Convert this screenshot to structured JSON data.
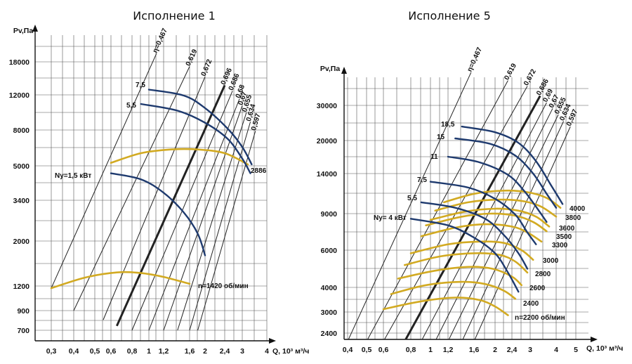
{
  "chart_data": [
    {
      "type": "line",
      "title": "Исполнение 1",
      "ylabel": "Pv,Па",
      "xlabel": "Q, 10³ м³/ч",
      "x_ticks": [
        "0,3",
        "0,4",
        "0,5",
        "0,6",
        "0,8",
        "1",
        "1,2",
        "1,6",
        "2",
        "2,4",
        "3",
        "4"
      ],
      "y_ticks": [
        "700",
        "900",
        "1200",
        "2000",
        "3400",
        "5000",
        "8000",
        "12000",
        "18000"
      ],
      "power_curves": [
        {
          "label": "7,5",
          "points": [
            [
              1.0,
              12800
            ],
            [
              1.5,
              11900
            ],
            [
              2.0,
              10300
            ],
            [
              2.5,
              8100
            ],
            [
              3.0,
              6400
            ],
            [
              3.35,
              5100
            ]
          ]
        },
        {
          "label": "5,5",
          "points": [
            [
              0.9,
              10800
            ],
            [
              1.4,
              10000
            ],
            [
              2.0,
              8700
            ],
            [
              2.5,
              7100
            ],
            [
              3.0,
              5500
            ],
            [
              3.3,
              4600
            ]
          ]
        },
        {
          "label": "Ny=1,5 кВт",
          "points": [
            [
              0.6,
              4600
            ],
            [
              0.9,
              4300
            ],
            [
              1.2,
              3700
            ],
            [
              1.5,
              2900
            ],
            [
              1.8,
              2200
            ],
            [
              2.0,
              1700
            ]
          ]
        }
      ],
      "speed_curves": [
        {
          "label": "2886",
          "points": [
            [
              0.6,
              5200
            ],
            [
              0.9,
              5900
            ],
            [
              1.3,
              6200
            ],
            [
              1.8,
              6200
            ],
            [
              2.4,
              5900
            ],
            [
              3.2,
              5100
            ]
          ]
        },
        {
          "label": "n=1420 об/мин",
          "points": [
            [
              0.3,
              1170
            ],
            [
              0.45,
              1320
            ],
            [
              0.65,
              1400
            ],
            [
              0.9,
              1390
            ],
            [
              1.2,
              1330
            ],
            [
              1.6,
              1230
            ]
          ]
        }
      ],
      "efficiency_lines": [
        {
          "label": "η=0,467",
          "from": [
            0.3,
            1170
          ],
          "to": [
            1.1,
            20000
          ]
        },
        {
          "label": "0,619",
          "from": [
            0.4,
            900
          ],
          "to": [
            1.6,
            17000
          ]
        },
        {
          "label": "0,672",
          "from": [
            0.55,
            800
          ],
          "to": [
            2.0,
            15000
          ]
        },
        {
          "label": "0,696",
          "from": [
            0.65,
            740
          ],
          "to": [
            2.4,
            13500
          ],
          "bold": true
        },
        {
          "label": "0,686",
          "from": [
            0.8,
            700
          ],
          "to": [
            2.65,
            12600
          ]
        },
        {
          "label": "0,68",
          "from": [
            1.0,
            700
          ],
          "to": [
            2.9,
            11500
          ]
        },
        {
          "label": "0,67",
          "from": [
            1.2,
            700
          ],
          "to": [
            3.0,
            10600
          ]
        },
        {
          "label": "0,655",
          "from": [
            1.4,
            700
          ],
          "to": [
            3.15,
            9800
          ]
        },
        {
          "label": "0,634",
          "from": [
            1.6,
            700
          ],
          "to": [
            3.3,
            8800
          ]
        },
        {
          "label": "0,597",
          "from": [
            1.8,
            700
          ],
          "to": [
            3.5,
            7900
          ]
        }
      ]
    },
    {
      "type": "line",
      "title": "Исполнение 5",
      "ylabel": "Pv,Па",
      "xlabel": "Q, 10³ м³/ч",
      "x_ticks": [
        "0,4",
        "0,5",
        "0,6",
        "0,8",
        "1",
        "1,2",
        "1,6",
        "2",
        "2,4",
        "3",
        "4",
        "5"
      ],
      "y_ticks": [
        "2400",
        "3000",
        "4000",
        "6000",
        "9000",
        "14000",
        "20000",
        "30000"
      ],
      "power_curves": [
        {
          "label": "18,5",
          "points": [
            [
              1.4,
              23500
            ],
            [
              2.0,
              22000
            ],
            [
              2.6,
              19500
            ],
            [
              3.2,
              16000
            ],
            [
              3.8,
              12200
            ],
            [
              4.3,
              10000
            ]
          ]
        },
        {
          "label": "15",
          "points": [
            [
              1.3,
              20500
            ],
            [
              1.9,
              19300
            ],
            [
              2.5,
              17000
            ],
            [
              3.1,
              14000
            ],
            [
              3.6,
              11200
            ],
            [
              4.0,
              9600
            ]
          ]
        },
        {
          "label": "11",
          "points": [
            [
              1.2,
              16800
            ],
            [
              1.7,
              15800
            ],
            [
              2.3,
              13800
            ],
            [
              2.8,
              11500
            ],
            [
              3.3,
              9300
            ],
            [
              3.6,
              8200
            ]
          ]
        },
        {
          "label": "7,5",
          "points": [
            [
              1.0,
              12800
            ],
            [
              1.5,
              12000
            ],
            [
              2.0,
              10600
            ],
            [
              2.5,
              8900
            ],
            [
              2.9,
              7300
            ],
            [
              3.2,
              6400
            ]
          ]
        },
        {
          "label": "5,5",
          "points": [
            [
              0.9,
              10200
            ],
            [
              1.3,
              9600
            ],
            [
              1.8,
              8500
            ],
            [
              2.2,
              7100
            ],
            [
              2.6,
              5800
            ],
            [
              2.9,
              4900
            ]
          ]
        },
        {
          "label": "Ny= 4 кВт",
          "points": [
            [
              0.8,
              8500
            ],
            [
              1.2,
              7900
            ],
            [
              1.6,
              6900
            ],
            [
              2.0,
              5800
            ],
            [
              2.3,
              4700
            ],
            [
              2.6,
              3800
            ]
          ]
        }
      ],
      "speed_curves": [
        {
          "label": "4000",
          "points": [
            [
              1.15,
              10200
            ],
            [
              1.6,
              11200
            ],
            [
              2.2,
              11600
            ],
            [
              2.9,
              11400
            ],
            [
              3.6,
              10700
            ],
            [
              4.2,
              9600
            ]
          ]
        },
        {
          "label": "3800",
          "points": [
            [
              1.05,
              9300
            ],
            [
              1.5,
              10200
            ],
            [
              2.1,
              10500
            ],
            [
              2.8,
              10300
            ],
            [
              3.4,
              9700
            ],
            [
              4.0,
              8700
            ]
          ]
        },
        {
          "label": "3600",
          "points": [
            [
              1.0,
              8400
            ],
            [
              1.45,
              9200
            ],
            [
              2.0,
              9500
            ],
            [
              2.6,
              9300
            ],
            [
              3.2,
              8700
            ],
            [
              3.7,
              7800
            ]
          ]
        },
        {
          "label": "3500",
          "points": [
            [
              0.95,
              7900
            ],
            [
              1.4,
              8700
            ],
            [
              1.9,
              9000
            ],
            [
              2.5,
              8800
            ],
            [
              3.1,
              8200
            ],
            [
              3.6,
              7400
            ]
          ]
        },
        {
          "label": "3300",
          "points": [
            [
              0.9,
              7000
            ],
            [
              1.3,
              7700
            ],
            [
              1.8,
              8000
            ],
            [
              2.4,
              7800
            ],
            [
              2.9,
              7300
            ],
            [
              3.4,
              6600
            ]
          ]
        },
        {
          "label": "3000",
          "points": [
            [
              0.8,
              5800
            ],
            [
              1.2,
              6400
            ],
            [
              1.7,
              6600
            ],
            [
              2.2,
              6500
            ],
            [
              2.7,
              6000
            ],
            [
              3.1,
              5400
            ]
          ]
        },
        {
          "label": "2800",
          "points": [
            [
              0.75,
              5100
            ],
            [
              1.1,
              5600
            ],
            [
              1.6,
              5800
            ],
            [
              2.1,
              5700
            ],
            [
              2.5,
              5300
            ],
            [
              2.9,
              4700
            ]
          ]
        },
        {
          "label": "2600",
          "points": [
            [
              0.7,
              4400
            ],
            [
              1.05,
              4800
            ],
            [
              1.5,
              5000
            ],
            [
              1.95,
              4900
            ],
            [
              2.4,
              4500
            ],
            [
              2.7,
              4100
            ]
          ]
        },
        {
          "label": "2400",
          "points": [
            [
              0.65,
              3700
            ],
            [
              0.95,
              4100
            ],
            [
              1.4,
              4250
            ],
            [
              1.8,
              4150
            ],
            [
              2.2,
              3850
            ],
            [
              2.5,
              3500
            ]
          ]
        },
        {
          "label": "n=2200 об/мин",
          "points": [
            [
              0.6,
              3100
            ],
            [
              0.9,
              3400
            ],
            [
              1.3,
              3550
            ],
            [
              1.7,
              3450
            ],
            [
              2.0,
              3200
            ],
            [
              2.3,
              2900
            ]
          ]
        }
      ],
      "efficiency_lines": [
        {
          "label": "η=0,467",
          "from": [
            0.4,
            2200
          ],
          "to": [
            1.55,
            44000
          ]
        },
        {
          "label": "0,619",
          "from": [
            0.5,
            2200
          ],
          "to": [
            2.3,
            40000
          ]
        },
        {
          "label": "0,672",
          "from": [
            0.6,
            2200
          ],
          "to": [
            2.9,
            37500
          ]
        },
        {
          "label": "0,686",
          "from": [
            0.75,
            2200
          ],
          "to": [
            3.35,
            33500
          ],
          "bold": true
        },
        {
          "label": "0,69",
          "from": [
            0.9,
            2200
          ],
          "to": [
            3.6,
            31000
          ]
        },
        {
          "label": "0,67",
          "from": [
            1.05,
            2200
          ],
          "to": [
            3.85,
            29000
          ]
        },
        {
          "label": "0,655",
          "from": [
            1.2,
            2200
          ],
          "to": [
            4.1,
            27000
          ]
        },
        {
          "label": "0,634",
          "from": [
            1.4,
            2200
          ],
          "to": [
            4.35,
            25000
          ]
        },
        {
          "label": "0,597",
          "from": [
            1.6,
            2200
          ],
          "to": [
            4.7,
            23500
          ]
        }
      ]
    }
  ],
  "colors": {
    "power_curve": "#1e3a6e",
    "speed_curve": "#d2aa22",
    "efficiency_line": "#222222",
    "grid": "#555555"
  }
}
